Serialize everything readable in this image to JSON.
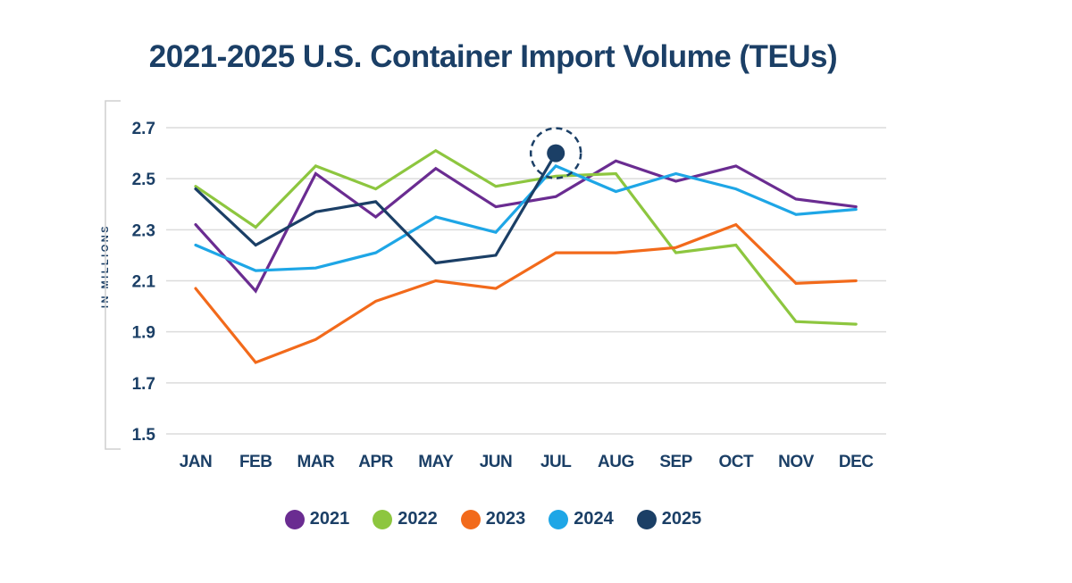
{
  "chart_data": {
    "type": "line",
    "title": "2021-2025 U.S. Container Import Volume (TEUs)",
    "xlabel": "",
    "ylabel": "IN MILLIONS",
    "categories": [
      "JAN",
      "FEB",
      "MAR",
      "APR",
      "MAY",
      "JUN",
      "JUL",
      "AUG",
      "SEP",
      "OCT",
      "NOV",
      "DEC"
    ],
    "yticks": [
      "1.5",
      "1.7",
      "1.9",
      "2.1",
      "2.3",
      "2.5",
      "2.7"
    ],
    "ylim": [
      1.5,
      2.7
    ],
    "grid": true,
    "legend_position": "bottom-center",
    "series": [
      {
        "name": "2021",
        "color": "#6a2c91",
        "values": [
          2.32,
          2.06,
          2.52,
          2.35,
          2.54,
          2.39,
          2.43,
          2.57,
          2.49,
          2.55,
          2.42,
          2.39
        ]
      },
      {
        "name": "2022",
        "color": "#8dc63f",
        "values": [
          2.47,
          2.31,
          2.55,
          2.46,
          2.61,
          2.47,
          2.51,
          2.52,
          2.21,
          2.24,
          1.94,
          1.93
        ]
      },
      {
        "name": "2023",
        "color": "#f26a1b",
        "values": [
          2.07,
          1.78,
          1.87,
          2.02,
          2.1,
          2.07,
          2.21,
          2.21,
          2.23,
          2.32,
          2.09,
          2.1
        ]
      },
      {
        "name": "2024",
        "color": "#1ea6e6",
        "values": [
          2.24,
          2.14,
          2.15,
          2.21,
          2.35,
          2.29,
          2.55,
          2.45,
          2.52,
          2.46,
          2.36,
          2.38
        ]
      },
      {
        "name": "2025",
        "color": "#1b3f66",
        "values": [
          2.46,
          2.24,
          2.37,
          2.41,
          2.17,
          2.2,
          2.6
        ]
      }
    ],
    "annotations": [
      {
        "type": "highlight-marker",
        "series": "2025",
        "category": "JUL",
        "value": 2.6
      }
    ]
  },
  "colors": {
    "text": "#1b3f66",
    "grid": "#dcdcdc",
    "axis_bracket": "#cfcfcf"
  }
}
